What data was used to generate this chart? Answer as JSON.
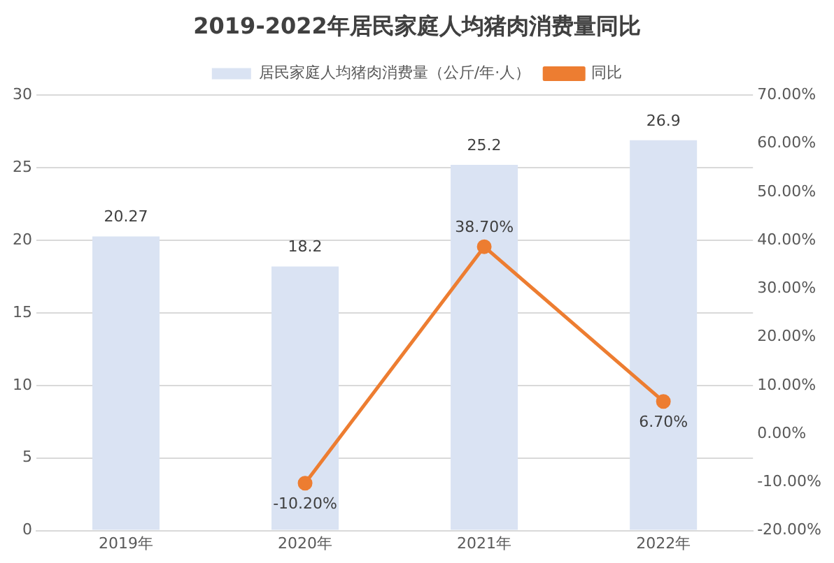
{
  "chart_data": {
    "type": "bar",
    "title": "2019-2022年居民家庭人均猪肉消费量同比",
    "categories": [
      "2019年",
      "2020年",
      "2021年",
      "2022年"
    ],
    "series": [
      {
        "name": "居民家庭人均猪肉消费量（公斤/年·人）",
        "color": "#dae3f3",
        "values": [
          20.27,
          18.2,
          25.2,
          26.9
        ],
        "value_labels": [
          "20.27",
          "18.2",
          "25.2",
          "26.9"
        ]
      },
      {
        "name": "同比",
        "type": "line",
        "axis": "y2",
        "color": "#ed7d31",
        "values": [
          null,
          -10.2,
          38.7,
          6.7
        ],
        "value_labels": [
          null,
          "-10.20%",
          "38.70%",
          "6.70%"
        ]
      }
    ],
    "ylim": [
      0,
      30
    ],
    "yticks": [
      0,
      5,
      10,
      15,
      20,
      25,
      30
    ],
    "y2lim": [
      -20,
      70
    ],
    "y2ticks": [
      {
        "value": -20,
        "label": "-20.00%"
      },
      {
        "value": -10,
        "label": "-10.00%"
      },
      {
        "value": 0,
        "label": "0.00%"
      },
      {
        "value": 10,
        "label": "10.00%"
      },
      {
        "value": 20,
        "label": "20.00%"
      },
      {
        "value": 30,
        "label": "30.00%"
      },
      {
        "value": 40,
        "label": "40.00%"
      },
      {
        "value": 50,
        "label": "50.00%"
      },
      {
        "value": 60,
        "label": "60.00%"
      },
      {
        "value": 70,
        "label": "70.00%"
      }
    ],
    "grid": "y",
    "legend": "top",
    "marker": "circle",
    "line_style": "solid"
  }
}
